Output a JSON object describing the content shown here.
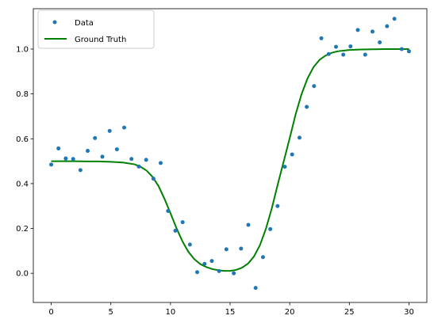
{
  "chart_data": {
    "type": "scatter",
    "title": "",
    "xlabel": "",
    "ylabel": "",
    "xlim": [
      -1.5,
      31.5
    ],
    "ylim": [
      -0.13,
      1.18
    ],
    "xticks": [
      0,
      5,
      10,
      15,
      20,
      25,
      30
    ],
    "xtick_labels": [
      "0",
      "5",
      "10",
      "15",
      "20",
      "25",
      "30"
    ],
    "yticks": [
      0.0,
      0.2,
      0.4,
      0.6,
      0.8,
      1.0
    ],
    "ytick_labels": [
      "0.0",
      "0.2",
      "0.4",
      "0.6",
      "0.8",
      "1.0"
    ],
    "grid": false,
    "legend_position": "top-left",
    "series": [
      {
        "name": "Data",
        "kind": "scatter",
        "color": "#1f77b4",
        "x": [
          0.0,
          0.61,
          1.22,
          1.84,
          2.45,
          3.06,
          3.67,
          4.29,
          4.9,
          5.51,
          6.12,
          6.73,
          7.35,
          7.96,
          8.57,
          9.18,
          9.8,
          10.41,
          11.02,
          11.63,
          12.24,
          12.86,
          13.47,
          14.08,
          14.69,
          15.31,
          15.92,
          16.53,
          17.14,
          17.76,
          18.37,
          18.98,
          19.59,
          20.2,
          20.82,
          21.43,
          22.04,
          22.65,
          23.27,
          23.88,
          24.49,
          25.1,
          25.71,
          26.33,
          26.94,
          27.55,
          28.16,
          28.78,
          29.39,
          30.0
        ],
        "y": [
          0.485,
          0.557,
          0.512,
          0.51,
          0.46,
          0.546,
          0.603,
          0.52,
          0.635,
          0.553,
          0.65,
          0.51,
          0.476,
          0.506,
          0.422,
          0.492,
          0.278,
          0.19,
          0.228,
          0.128,
          0.005,
          0.042,
          0.055,
          0.01,
          0.107,
          0.0,
          0.11,
          0.216,
          -0.065,
          0.072,
          0.197,
          0.3,
          0.475,
          0.53,
          0.605,
          0.742,
          0.835,
          1.048,
          0.978,
          1.01,
          0.975,
          1.012,
          1.085,
          0.975,
          1.078,
          1.03,
          1.102,
          1.135,
          1.0,
          0.99
        ]
      },
      {
        "name": "Ground Truth",
        "kind": "line",
        "color": "#008000",
        "x": [
          0,
          1,
          2,
          3,
          4,
          5,
          6,
          7,
          7.5,
          8,
          8.5,
          9,
          9.5,
          10,
          10.5,
          11,
          11.5,
          12,
          12.5,
          13,
          13.5,
          14,
          14.5,
          15,
          15.5,
          16,
          16.5,
          17,
          17.5,
          18,
          18.5,
          19,
          19.5,
          20,
          20.5,
          21,
          21.5,
          22,
          22.5,
          23,
          23.5,
          24,
          25,
          26,
          27,
          28,
          29,
          30
        ],
        "y": [
          0.5,
          0.5,
          0.5,
          0.499,
          0.499,
          0.497,
          0.494,
          0.486,
          0.475,
          0.458,
          0.43,
          0.389,
          0.332,
          0.268,
          0.202,
          0.143,
          0.096,
          0.063,
          0.041,
          0.028,
          0.019,
          0.014,
          0.011,
          0.011,
          0.015,
          0.025,
          0.043,
          0.075,
          0.125,
          0.198,
          0.29,
          0.397,
          0.5,
          0.603,
          0.71,
          0.8,
          0.87,
          0.92,
          0.952,
          0.971,
          0.983,
          0.99,
          0.996,
          0.998,
          0.999,
          1.0,
          1.0,
          1.0
        ]
      }
    ]
  }
}
